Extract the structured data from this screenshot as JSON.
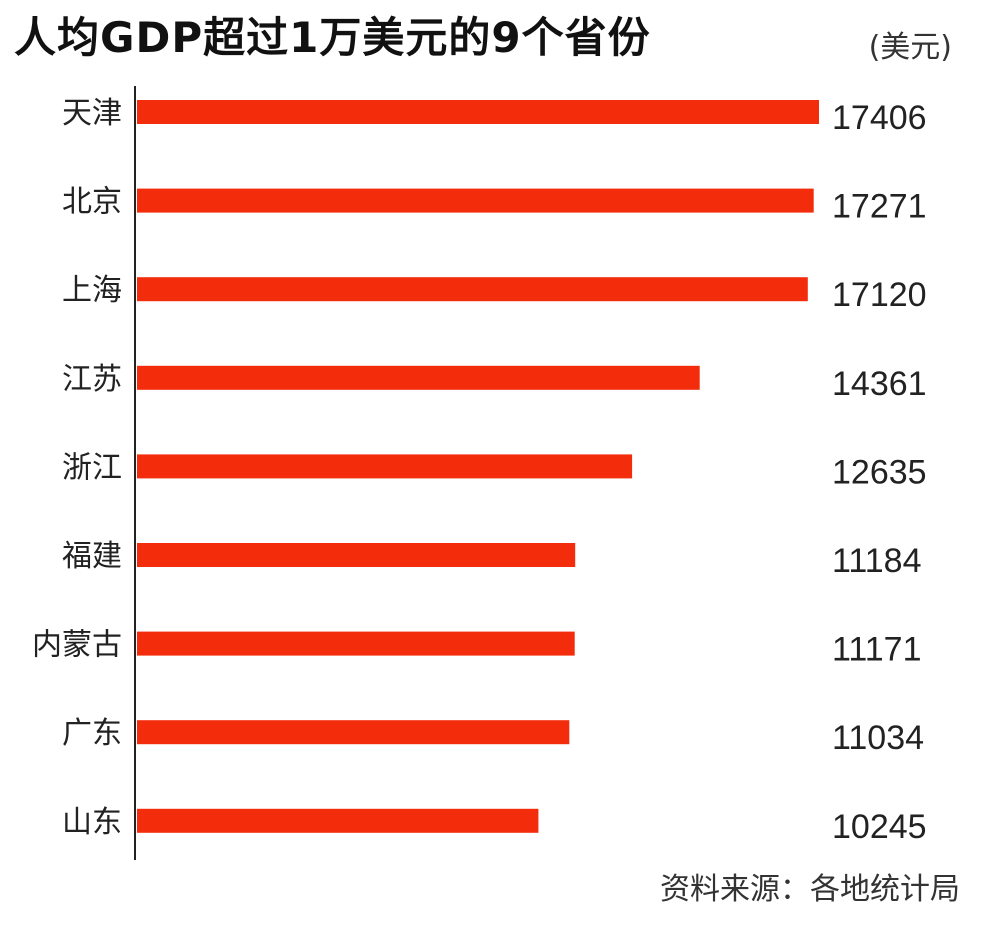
{
  "chart_data": {
    "type": "bar",
    "orientation": "horizontal",
    "title": "人均GDP超过1万美元的9个省份",
    "unit_label": "(美元)",
    "source": "资料来源：各地统计局",
    "categories": [
      "天津",
      "北京",
      "上海",
      "江苏",
      "浙江",
      "福建",
      "内蒙古",
      "广东",
      "山东"
    ],
    "values": [
      17406,
      17271,
      17120,
      14361,
      12635,
      11184,
      11171,
      11034,
      10245
    ],
    "value_labels": [
      "17406",
      "17271",
      "17120",
      "14361",
      "12635",
      "11184",
      "11171",
      "11034",
      "10245"
    ],
    "xlim": [
      0,
      17406
    ],
    "grid": false,
    "legend": "none",
    "bar_color": "#f32c0c"
  }
}
